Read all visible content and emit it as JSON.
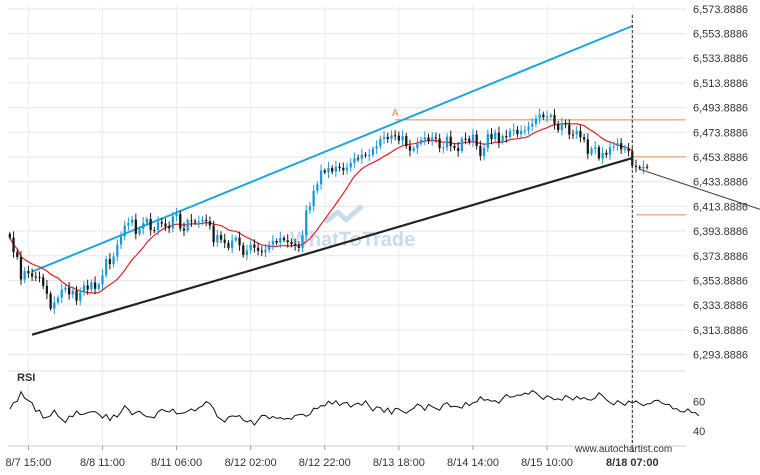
{
  "chart_data": {
    "type": "candlestick",
    "price_axis": {
      "ticks": [
        6573.8886,
        6553.8886,
        6533.8886,
        6513.8886,
        6493.8886,
        6473.8886,
        6453.8886,
        6433.8886,
        6413.8886,
        6393.8886,
        6373.8886,
        6353.8886,
        6333.8886,
        6313.8886,
        6293.8886
      ],
      "tick_labels": [
        "6,573.8886",
        "6,553.8886",
        "6,533.8886",
        "6,513.8886",
        "6,493.8886",
        "6,473.8886",
        "6,453.8886",
        "6,433.8886",
        "6,413.8886",
        "6,393.8886",
        "6,373.8886",
        "6,353.8886",
        "6,333.8886",
        "6,313.8886",
        "6,293.8886"
      ],
      "range": [
        6283,
        6577
      ]
    },
    "time_axis": {
      "labels": [
        "8/7 15:00",
        "8/8 11:00",
        "8/11 06:00",
        "8/12 02:00",
        "8/12 22:00",
        "8/13 18:00",
        "8/14 14:00",
        "8/15 10:00",
        "8/18 07:00"
      ],
      "label_index": [
        5,
        25,
        45,
        65,
        85,
        105,
        125,
        145,
        168
      ],
      "bars": 183,
      "current_label": "8/18 07:00"
    },
    "upper_trendline": {
      "from": [
        6,
        6361
      ],
      "to": [
        168,
        6560
      ]
    },
    "lower_trendline": {
      "from": [
        6,
        6310
      ],
      "to": [
        168,
        6453
      ]
    },
    "resistance_level": {
      "value": 6484,
      "from_bar": 104
    },
    "breakout_level": {
      "value": 6454
    },
    "target_level": {
      "value": 6407
    },
    "forecast_arrow": {
      "from": [
        170,
        6444
      ],
      "to": [
        206,
        6408
      ]
    },
    "point_marker": {
      "label": "A",
      "bar": 104,
      "value": 6484
    },
    "current_bar": 168,
    "ohlc_series": [
      6388.61,
      6376.8,
      6372.97,
      6354.63,
      6361.54,
      6359.67,
      6357.01,
      6356.62,
      6356.41,
      6349.58,
      6343.12,
      6331.16,
      6336.06,
      6339.96,
      6346.45,
      6348.05,
      6342.56,
      6345.55,
      6337.57,
      6344.16,
      6349.92,
      6346.57,
      6352.3,
      6347.16,
      6350.76,
      6358.23,
      6371.3,
      6367.13,
      6373.28,
      6382.93,
      6389.66,
      6398.32,
      6400.51,
      6403.21,
      6391.62,
      6395.73,
      6400.32,
      6403.67,
      6394.73,
      6394.63,
      6401.18,
      6400.05,
      6397.67,
      6396.09,
      6405.87,
      6407.89,
      6396.01,
      6394.3,
      6402.68,
      6401.75,
      6400.79,
      6401.69,
      6402.95,
      6401.91,
      6398.43,
      6384.84,
      6390.69,
      6386.93,
      6384.36,
      6380.26,
      6386.33,
      6388.56,
      6382.36,
      6374.62,
      6378.21,
      6382.98,
      6380.39,
      6377.96,
      6376.79,
      6378.8,
      6382.93,
      6385.93,
      6384.39,
      6388.33,
      6386.5,
      6384.95,
      6383.26,
      6382.09,
      6380.23,
      6390.63,
      6410.65,
      6414.17,
      6426.49,
      6431.79,
      6442.96,
      6441.36,
      6444.93,
      6442.09,
      6446.06,
      6445.04,
      6443.12,
      6445.42,
      6449.24,
      6452.9,
      6452.66,
      6455.79,
      6455.06,
      6455.55,
      6460.69,
      6462.61,
      6468.65,
      6470.09,
      6468.45,
      6471.42,
      6471.11,
      6467.25,
      6470.81,
      6462.87,
      6458.96,
      6460.96,
      6464.76,
      6467.84,
      6469.78,
      6467.04,
      6469.84,
      6468.87,
      6461.14,
      6461.52,
      6470.4,
      6462.69,
      6461.05,
      6458.74,
      6468.8,
      6468.71,
      6466.18,
      6472.12,
      6462.91,
      6454.78,
      6461.14,
      6472.58,
      6468.35,
      6473.54,
      6465.64,
      6470.91,
      6469.91,
      6475.09,
      6476.01,
      6472.4,
      6475.04,
      6475.54,
      6478.65,
      6480.71,
      6485.06,
      6488.35,
      6486.25,
      6486.37,
      6487.93,
      6480.66,
      6475.74,
      6481.06,
      6480.15,
      6472.09,
      6472.07,
      6475.13,
      6469.9,
      6468.15,
      6456.53,
      6460.54,
      6461.73,
      6452.7,
      6457.26,
      6455.66,
      6461.8,
      6462.66,
      6465.05,
      6460.16,
      6460.5,
      6458.56,
      6446.84,
      6445.78,
      6444.71,
      6446.07,
      6445.66
    ]
  },
  "rsi": {
    "label": "RSI",
    "ticks": [
      60,
      40
    ],
    "range": [
      30,
      80
    ],
    "values": [
      55.0,
      59.39,
      60.16,
      66.67,
      62.24,
      60.79,
      59.16,
      53.32,
      54.23,
      48.82,
      49.37,
      50.44,
      54.24,
      50.27,
      48.17,
      45.71,
      50.27,
      49.78,
      53.66,
      51.22,
      51.57,
      52.59,
      53.15,
      53.25,
      51.57,
      48.9,
      51.37,
      47.12,
      51.03,
      49.5,
      52.89,
      57.25,
      54.77,
      51.1,
      52.61,
      53.5,
      51.17,
      49.7,
      49.59,
      49.01,
      53.06,
      54.82,
      53.61,
      53.0,
      54.95,
      51.73,
      51.96,
      52.34,
      53.56,
      55.07,
      53.63,
      55.91,
      57.04,
      60.05,
      58.64,
      55.32,
      49.7,
      48.12,
      46.22,
      49.53,
      50.32,
      49.96,
      50.51,
      47.46,
      46.22,
      47.45,
      44.13,
      47.38,
      50.66,
      50.6,
      48.37,
      50.0,
      48.67,
      49.09,
      48.11,
      48.62,
      48.11,
      50.69,
      51.12,
      51.54,
      50.07,
      51.37,
      55.55,
      55.3,
      57.28,
      57.16,
      60.25,
      58.23,
      60.62,
      57.38,
      58.97,
      59.43,
      56.23,
      58.12,
      59.0,
      57.41,
      60.57,
      57.04,
      53.62,
      56.46,
      55.9,
      52.7,
      55.6,
      51.54,
      55.5,
      54.99,
      53.31,
      52.12,
      54.06,
      55.46,
      58.37,
      57.07,
      54.06,
      58.19,
      56.53,
      55.35,
      54.17,
      57.99,
      59.31,
      56.5,
      56.85,
      56.44,
      55.6,
      59.4,
      57.29,
      59.16,
      59.82,
      63.21,
      60.9,
      61.41,
      60.29,
      60.6,
      58.93,
      62.09,
      64.78,
      63.02,
      63.21,
      64.37,
      64.31,
      65.73,
      65.02,
      67.51,
      65.97,
      63.49,
      61.48,
      63.96,
      62.91,
      61.22,
      61.91,
      60.89,
      64.1,
      62.77,
      61.0,
      63.56,
      61.6,
      62.8,
      61.35,
      61.04,
      62.45,
      65.98,
      63.99,
      61.21,
      59.39,
      57.8,
      60.6,
      59.15,
      57.43,
      60.39,
      58.99,
      60.44,
      58.66,
      57.22,
      58.53,
      58.65,
      60.65,
      60.93,
      59.01,
      58.04,
      58.12,
      55.01,
      55.27,
      53.28,
      52.88,
      55.04,
      52.64,
      52.56,
      50.35
    ]
  },
  "watermark": "WhatToTrade",
  "source": "www.autochartist.com",
  "colors": {
    "candle_up": "#1a9ad6",
    "candle_down": "#1a1a1a",
    "moving_average": "#e02020",
    "upper_trendline": "#1ea6dc",
    "lower_trendline": "#222222",
    "levels": "#e8864e",
    "rsi_line": "#111111"
  }
}
